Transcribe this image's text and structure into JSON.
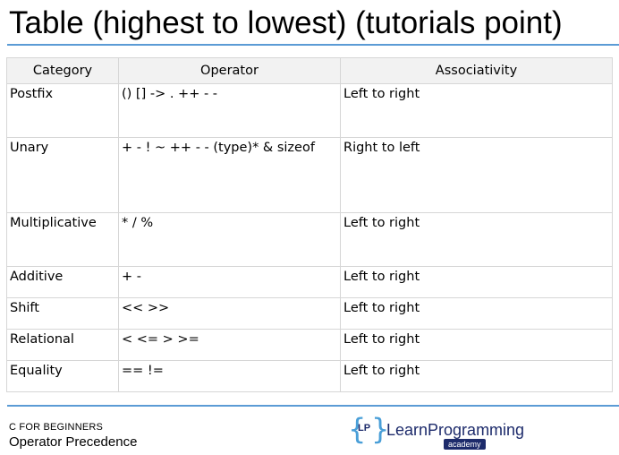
{
  "slide": {
    "title": "Table (highest to lowest)  (tutorials point)"
  },
  "table": {
    "headers": [
      "Category",
      "Operator",
      "Associativity"
    ],
    "rows": [
      {
        "category": "Postfix",
        "operator": "() [] -> . ++ - -",
        "associativity": "Left to right"
      },
      {
        "category": "Unary",
        "operator": "+ - ! ~ ++ - - (type)* & sizeof",
        "associativity": "Right to left"
      },
      {
        "category": "Multiplicative",
        "operator": "* / %",
        "associativity": "Left to right"
      },
      {
        "category": "Additive",
        "operator": "+ -",
        "associativity": "Left to right"
      },
      {
        "category": "Shift",
        "operator": "<< >>",
        "associativity": "Left to right"
      },
      {
        "category": "Relational",
        "operator": "< <= > >=",
        "associativity": "Left to right"
      },
      {
        "category": "Equality",
        "operator": "== !=",
        "associativity": "Left to right"
      }
    ]
  },
  "footer": {
    "course": "C FOR BEGINNERS",
    "topic": "Operator Precedence"
  },
  "logo": {
    "left_brace": "{",
    "monogram": "LP",
    "right_brace": "}",
    "brand": "LearnProgramming",
    "tagline": "academy"
  },
  "colors": {
    "accent_rule": "#5b9bd5",
    "header_fill": "#f2f2f2",
    "logo_blue": "#4a9fd8",
    "logo_navy": "#1d2b6b"
  }
}
